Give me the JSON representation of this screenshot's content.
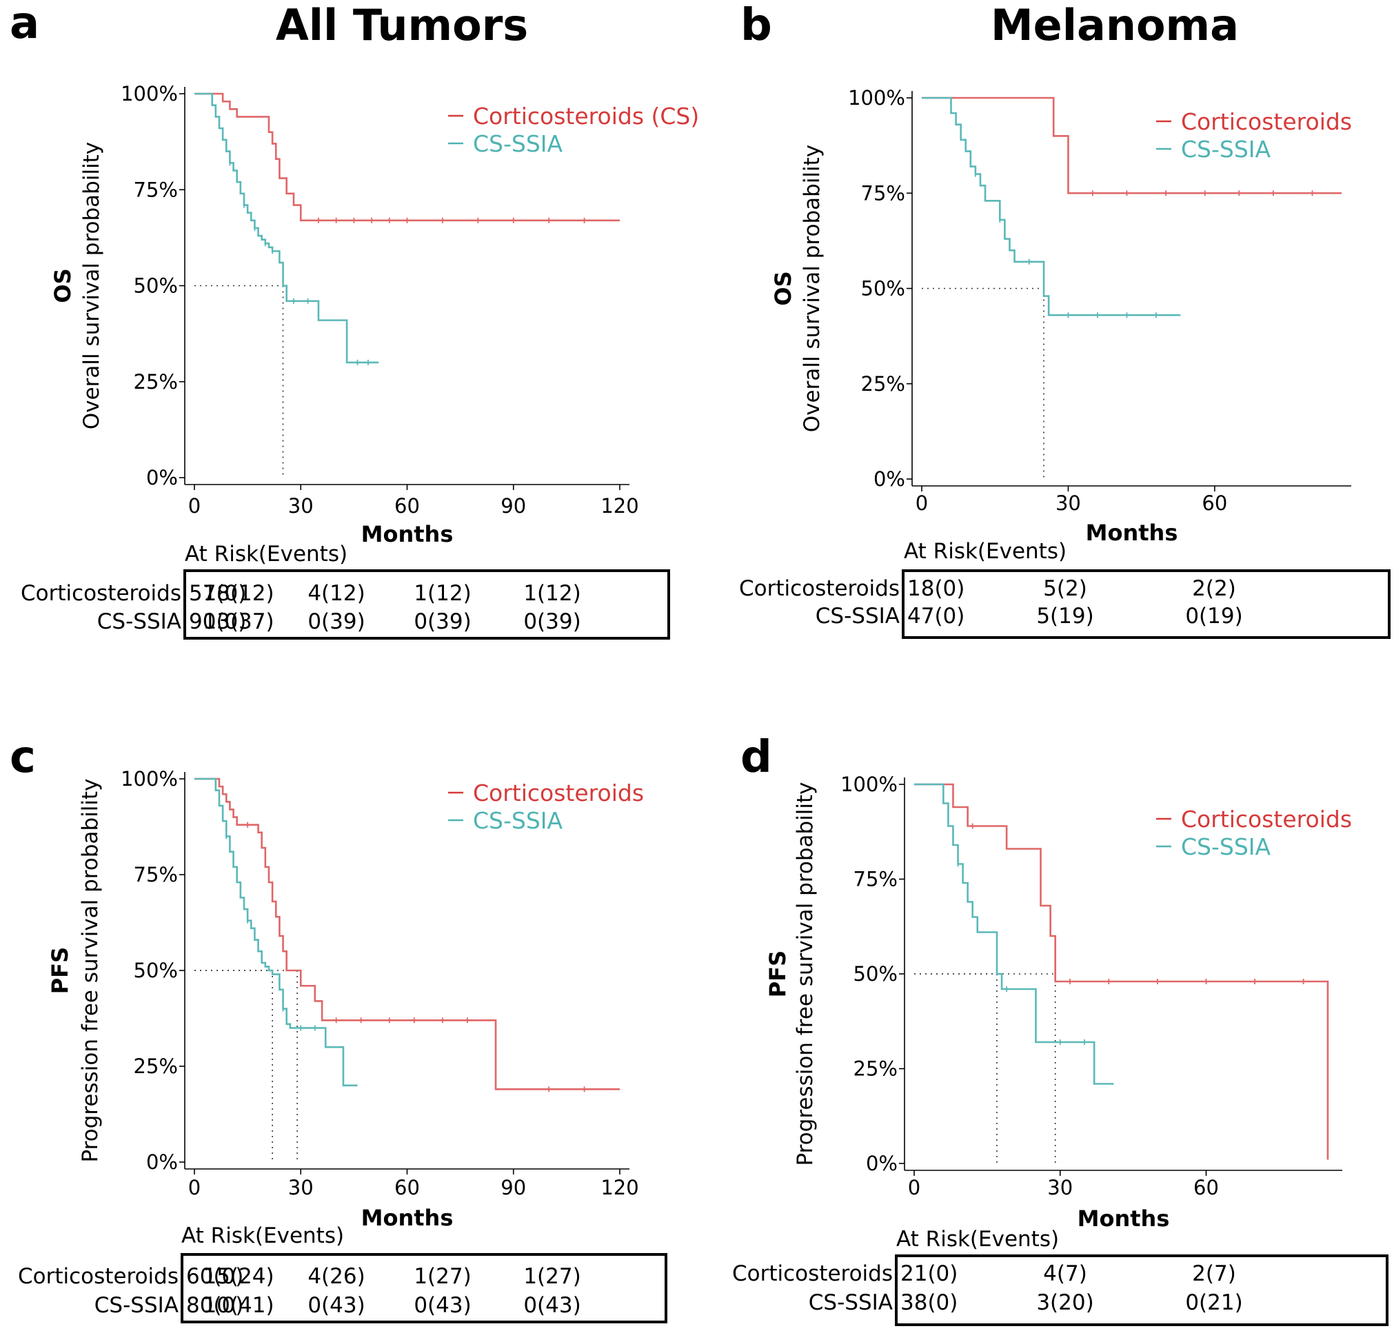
{
  "titles": {
    "left": "All Tumors",
    "right": "Melanoma"
  },
  "colors": {
    "cs": "#e06666",
    "ssia": "#5ab8b8",
    "legend_cs": "#d63a3a",
    "legend_ssia": "#4fb3b3"
  },
  "chart_data": [
    {
      "id": "a",
      "letter": "a",
      "type": "line",
      "endpoint": "OS",
      "ylabel": "Overall survival probability",
      "xlabel": "Months",
      "xlim": [
        0,
        120
      ],
      "xticks": [
        0,
        30,
        60,
        90,
        120
      ],
      "xtick_labels": [
        "0",
        "30",
        "60",
        "90",
        "120"
      ],
      "ylim": [
        0,
        1
      ],
      "yticks": [
        0,
        0.25,
        0.5,
        0.75,
        1
      ],
      "ytick_labels": [
        "0%",
        "25%",
        "50%",
        "75%",
        "100%"
      ],
      "legend": [
        "Corticosteroids (CS)",
        "CS-SSIA"
      ],
      "legend_position": "top-right",
      "median_lines": [
        {
          "x": 25,
          "y": 0.5
        }
      ],
      "series": [
        {
          "name": "Corticosteroids (CS)",
          "color_key": "cs",
          "x": [
            0,
            6,
            8,
            10,
            12,
            19,
            21,
            22,
            23,
            24,
            26,
            28,
            30,
            120
          ],
          "y": [
            1,
            1,
            0.98,
            0.96,
            0.94,
            0.94,
            0.9,
            0.87,
            0.83,
            0.78,
            0.74,
            0.71,
            0.67,
            0.67
          ],
          "censor": [
            35,
            40,
            45,
            50,
            55,
            60,
            70,
            80,
            90,
            100,
            110
          ]
        },
        {
          "name": "CS-SSIA",
          "color_key": "ssia",
          "x": [
            0,
            4,
            5,
            6,
            7,
            8,
            9,
            10,
            11,
            12,
            13,
            14,
            15,
            16,
            17,
            18,
            19,
            20,
            21,
            22,
            23,
            24,
            25,
            26,
            30,
            35,
            43,
            52
          ],
          "y": [
            1,
            1,
            0.97,
            0.94,
            0.91,
            0.88,
            0.85,
            0.82,
            0.8,
            0.77,
            0.74,
            0.71,
            0.69,
            0.67,
            0.65,
            0.63,
            0.62,
            0.61,
            0.6,
            0.59,
            0.59,
            0.56,
            0.5,
            0.46,
            0.46,
            0.41,
            0.3,
            0.3
          ],
          "censor": [
            10,
            14,
            17,
            20,
            22,
            28,
            32,
            46,
            49
          ]
        }
      ],
      "risk_table": {
        "title": "At Risk(Events)",
        "rows": [
          "Corticosteroids",
          "CS-SSIA"
        ],
        "times": [
          0,
          30,
          60,
          90,
          120
        ],
        "values": [
          [
            "57(0)",
            "18(12)",
            "4(12)",
            "1(12)",
            "1(12)"
          ],
          [
            "90(0)",
            "13(37)",
            "0(39)",
            "0(39)",
            "0(39)"
          ]
        ]
      }
    },
    {
      "id": "b",
      "letter": "b",
      "type": "line",
      "endpoint": "OS",
      "ylabel": "Overall survival probability",
      "xlabel": "Months",
      "xlim": [
        0,
        86
      ],
      "xticks": [
        0,
        30,
        60
      ],
      "xtick_labels": [
        "0",
        "30",
        "60"
      ],
      "ylim": [
        0,
        1
      ],
      "yticks": [
        0,
        0.25,
        0.5,
        0.75,
        1
      ],
      "ytick_labels": [
        "0%",
        "25%",
        "50%",
        "75%",
        "100%"
      ],
      "legend": [
        "Corticosteroids",
        "CS-SSIA"
      ],
      "legend_position": "top-right",
      "median_lines": [
        {
          "x": 25,
          "y": 0.5
        }
      ],
      "series": [
        {
          "name": "Corticosteroids",
          "color_key": "cs",
          "x": [
            0,
            27,
            30,
            86
          ],
          "y": [
            1,
            0.9,
            0.75,
            0.75
          ],
          "censor": [
            35,
            42,
            50,
            58,
            65,
            72,
            80
          ]
        },
        {
          "name": "CS-SSIA",
          "color_key": "ssia",
          "x": [
            0,
            5,
            6,
            7,
            8,
            9,
            10,
            11,
            12,
            13,
            14,
            16,
            17,
            18,
            19,
            20,
            21,
            25,
            26,
            53
          ],
          "y": [
            1,
            1,
            0.96,
            0.93,
            0.89,
            0.86,
            0.82,
            0.8,
            0.77,
            0.73,
            0.73,
            0.68,
            0.63,
            0.6,
            0.57,
            0.57,
            0.57,
            0.48,
            0.43,
            0.43
          ],
          "censor": [
            11,
            16,
            22,
            30,
            36,
            42,
            48
          ]
        }
      ],
      "risk_table": {
        "title": "At Risk(Events)",
        "rows": [
          "Corticosteroids",
          "CS-SSIA"
        ],
        "times": [
          0,
          30,
          60
        ],
        "values": [
          [
            "18(0)",
            "5(2)",
            "2(2)"
          ],
          [
            "47(0)",
            "5(19)",
            "0(19)"
          ]
        ]
      }
    },
    {
      "id": "c",
      "letter": "c",
      "type": "line",
      "endpoint": "PFS",
      "ylabel": "Progression free survival probability",
      "xlabel": "Months",
      "xlim": [
        0,
        120
      ],
      "xticks": [
        0,
        30,
        60,
        90,
        120
      ],
      "xtick_labels": [
        "0",
        "30",
        "60",
        "90",
        "120"
      ],
      "ylim": [
        0,
        1
      ],
      "yticks": [
        0,
        0.25,
        0.5,
        0.75,
        1
      ],
      "ytick_labels": [
        "0%",
        "25%",
        "50%",
        "75%",
        "100%"
      ],
      "legend": [
        "Corticosteroids",
        "CS-SSIA"
      ],
      "legend_position": "top-right",
      "median_lines": [
        {
          "x": 22,
          "y": 0.5
        },
        {
          "x": 29,
          "y": 0.5
        }
      ],
      "series": [
        {
          "name": "Corticosteroids",
          "color_key": "cs",
          "x": [
            0,
            6,
            7,
            8,
            9,
            10,
            11,
            12,
            17,
            18,
            19,
            20,
            21,
            22,
            23,
            24,
            25,
            26,
            27,
            29,
            30,
            32,
            34,
            36,
            60,
            84,
            85,
            120
          ],
          "y": [
            1,
            1,
            0.98,
            0.96,
            0.94,
            0.92,
            0.9,
            0.88,
            0.88,
            0.86,
            0.82,
            0.77,
            0.73,
            0.68,
            0.64,
            0.59,
            0.55,
            0.5,
            0.5,
            0.5,
            0.46,
            0.46,
            0.42,
            0.37,
            0.37,
            0.37,
            0.19,
            0.19
          ],
          "censor": [
            15,
            40,
            47,
            55,
            62,
            70,
            77,
            100,
            110
          ]
        },
        {
          "name": "CS-SSIA",
          "color_key": "ssia",
          "x": [
            0,
            5,
            6,
            7,
            8,
            9,
            10,
            11,
            12,
            13,
            14,
            15,
            16,
            17,
            18,
            19,
            20,
            21,
            22,
            23,
            24,
            25,
            26,
            27,
            37,
            42,
            46
          ],
          "y": [
            1,
            1,
            0.97,
            0.93,
            0.89,
            0.85,
            0.81,
            0.77,
            0.73,
            0.69,
            0.66,
            0.63,
            0.61,
            0.58,
            0.55,
            0.52,
            0.51,
            0.5,
            0.49,
            0.49,
            0.45,
            0.4,
            0.36,
            0.35,
            0.3,
            0.2,
            0.2
          ],
          "censor": [
            9,
            15,
            25,
            30,
            34
          ]
        }
      ],
      "risk_table": {
        "title": "At Risk(Events)",
        "rows": [
          "Corticosteroids",
          "CS-SSIA"
        ],
        "times": [
          0,
          30,
          60,
          90,
          120
        ],
        "values": [
          [
            "60(0)",
            "15(24)",
            "4(26)",
            "1(27)",
            "1(27)"
          ],
          [
            "80(0)",
            "10(41)",
            "0(43)",
            "0(43)",
            "0(43)"
          ]
        ]
      }
    },
    {
      "id": "d",
      "letter": "d",
      "type": "line",
      "endpoint": "PFS",
      "ylabel": "Progression free survival probability",
      "xlabel": "Months",
      "xlim": [
        0,
        86
      ],
      "xticks": [
        0,
        30,
        60
      ],
      "xtick_labels": [
        "0",
        "30",
        "60"
      ],
      "ylim": [
        0,
        1
      ],
      "yticks": [
        0,
        0.25,
        0.5,
        0.75,
        1
      ],
      "ytick_labels": [
        "0%",
        "25%",
        "50%",
        "75%",
        "100%"
      ],
      "legend": [
        "Corticosteroids",
        "CS-SSIA"
      ],
      "legend_position": "top-right",
      "median_lines": [
        {
          "x": 17,
          "y": 0.5
        },
        {
          "x": 29,
          "y": 0.5
        }
      ],
      "series": [
        {
          "name": "Corticosteroids",
          "color_key": "cs",
          "x": [
            0,
            6,
            8,
            11,
            16,
            19,
            25,
            26,
            28,
            29,
            84,
            85
          ],
          "y": [
            1,
            1,
            0.94,
            0.89,
            0.89,
            0.83,
            0.83,
            0.68,
            0.6,
            0.48,
            0.48,
            0.01
          ],
          "censor": [
            12,
            32,
            40,
            50,
            60,
            70,
            80
          ]
        },
        {
          "name": "CS-SSIA",
          "color_key": "ssia",
          "x": [
            0,
            5,
            6,
            7,
            8,
            9,
            10,
            11,
            12,
            13,
            14,
            17,
            18,
            25,
            26,
            37,
            41
          ],
          "y": [
            1,
            1,
            0.95,
            0.89,
            0.84,
            0.79,
            0.74,
            0.69,
            0.65,
            0.61,
            0.61,
            0.5,
            0.46,
            0.32,
            0.32,
            0.21,
            0.21
          ],
          "censor": [
            9,
            19,
            30,
            35
          ]
        }
      ],
      "risk_table": {
        "title": "At Risk(Events)",
        "rows": [
          "Corticosteroids",
          "CS-SSIA"
        ],
        "times": [
          0,
          30,
          60
        ],
        "values": [
          [
            "21(0)",
            "4(7)",
            "2(7)"
          ],
          [
            "38(0)",
            "3(20)",
            "0(21)"
          ]
        ]
      }
    }
  ]
}
